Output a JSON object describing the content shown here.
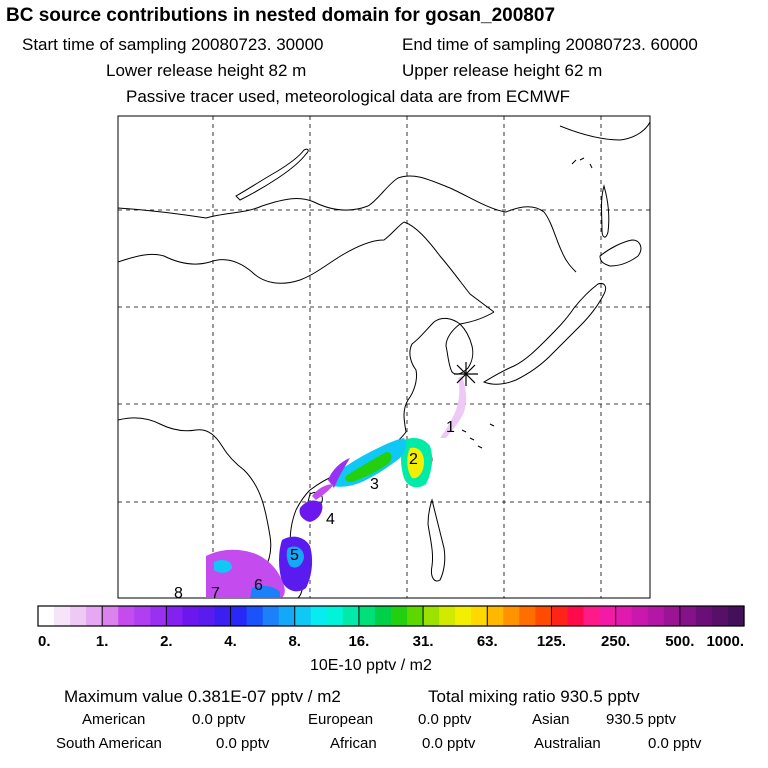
{
  "header": {
    "title": "BC  source contributions in nested domain for gosan_200807",
    "start_label": "Start time of sampling 20080723. 30000",
    "end_label": "End time of sampling 20080723. 60000",
    "lower_release": "Lower release height   82 m",
    "upper_release": "Upper release height   62 m",
    "tracer_note": "Passive tracer used, meteorological data are from ECMWF"
  },
  "chart_data": {
    "type": "heatmap",
    "title": "BC  source contributions in nested domain for gosan_200807",
    "colorbar": {
      "unit_label": "10E-10 pptv / m2",
      "tick_labels": [
        "0.",
        "1.",
        "2.",
        "4.",
        "8.",
        "16.",
        "31.",
        "63.",
        "125.",
        "250.",
        "500.",
        "1000."
      ],
      "colors": [
        "#ffffff",
        "#f6e4fb",
        "#efc9f6",
        "#e6a8f2",
        "#dc82ee",
        "#c44cee",
        "#b13ef0",
        "#9930f2",
        "#8322f0",
        "#6c17ee",
        "#5a1cee",
        "#3a1ef2",
        "#2828f8",
        "#1c52fa",
        "#1c80fa",
        "#14a8f8",
        "#10c8f6",
        "#06ecf0",
        "#00f4d8",
        "#00eaa8",
        "#00e07a",
        "#00d048",
        "#22d010",
        "#5cd800",
        "#9ce200",
        "#d2ea00",
        "#f4ee00",
        "#ffd800",
        "#ffb800",
        "#ff9200",
        "#ff6e00",
        "#ff4c00",
        "#ff2418",
        "#ff0a4c",
        "#ff1a8a",
        "#f41aa8",
        "#e01aae",
        "#ca18ae",
        "#b416a6",
        "#9c1496",
        "#841288",
        "#6c0e78",
        "#561068",
        "#44105a"
      ]
    },
    "receptor": {
      "name": "gosan",
      "marker": "asterisk"
    },
    "source_labels": [
      "1",
      "2",
      "3",
      "4",
      "5",
      "6",
      "7",
      "8"
    ]
  },
  "summary": {
    "max_value": "Maximum value  0.381E-07 pptv / m2",
    "total_mixing": "Total mixing ratio     930.5 pptv",
    "american_label": "American",
    "american_value": "0.0 pptv",
    "european_label": "European",
    "european_value": "0.0 pptv",
    "asian_label": "Asian",
    "asian_value": "930.5 pptv",
    "south_american_label": "South American",
    "south_american_value": "0.0 pptv",
    "african_label": "African",
    "african_value": "0.0 pptv",
    "australian_label": "Australian",
    "australian_value": "0.0 pptv"
  }
}
